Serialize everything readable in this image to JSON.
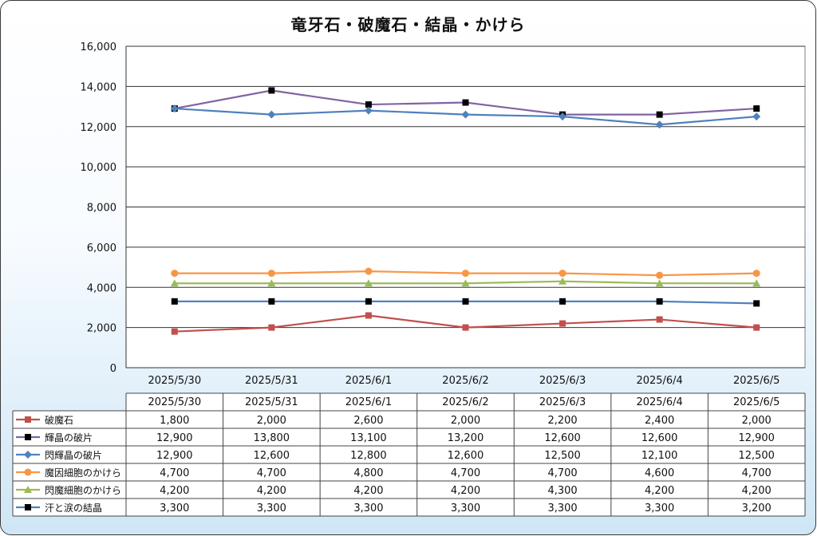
{
  "chart_data": {
    "type": "line",
    "title": "竜牙石・破魔石・結晶・かけら",
    "categories": [
      "2025/5/30",
      "2025/5/31",
      "2025/6/1",
      "2025/6/2",
      "2025/6/3",
      "2025/6/4",
      "2025/6/5"
    ],
    "ylim": [
      0,
      16000
    ],
    "yticks": [
      0,
      2000,
      4000,
      6000,
      8000,
      10000,
      12000,
      14000,
      16000
    ],
    "ytick_labels": [
      "0",
      "2,000",
      "4,000",
      "6,000",
      "8,000",
      "10,000",
      "12,000",
      "14,000",
      "16,000"
    ],
    "grid": true,
    "legend": "data-table-below",
    "series": [
      {
        "name": "破魔石",
        "color": "#c0504d",
        "marker": "square",
        "values": [
          1800,
          2000,
          2600,
          2000,
          2200,
          2400,
          2000
        ],
        "labels": [
          "1,800",
          "2,000",
          "2,600",
          "2,000",
          "2,200",
          "2,400",
          "2,000"
        ]
      },
      {
        "name": "輝晶の破片",
        "color": "#8064a2",
        "marker_color": "#000000",
        "marker": "square",
        "values": [
          12900,
          13800,
          13100,
          13200,
          12600,
          12600,
          12900
        ],
        "labels": [
          "12,900",
          "13,800",
          "13,100",
          "13,200",
          "12,600",
          "12,600",
          "12,900"
        ]
      },
      {
        "name": "閃輝晶の破片",
        "color": "#4f81bd",
        "marker": "diamond",
        "values": [
          12900,
          12600,
          12800,
          12600,
          12500,
          12100,
          12500
        ],
        "labels": [
          "12,900",
          "12,600",
          "12,800",
          "12,600",
          "12,500",
          "12,100",
          "12,500"
        ]
      },
      {
        "name": "魔因細胞のかけら",
        "color": "#f79646",
        "marker": "circle",
        "values": [
          4700,
          4700,
          4800,
          4700,
          4700,
          4600,
          4700
        ],
        "labels": [
          "4,700",
          "4,700",
          "4,800",
          "4,700",
          "4,700",
          "4,600",
          "4,700"
        ]
      },
      {
        "name": "閃魔細胞のかけら",
        "color": "#9bbb59",
        "marker": "triangle",
        "values": [
          4200,
          4200,
          4200,
          4200,
          4300,
          4200,
          4200
        ],
        "labels": [
          "4,200",
          "4,200",
          "4,200",
          "4,200",
          "4,300",
          "4,200",
          "4,200"
        ]
      },
      {
        "name": "汗と涙の結晶",
        "color": "#4f81bd",
        "marker_color": "#000000",
        "marker": "square",
        "values": [
          3300,
          3300,
          3300,
          3300,
          3300,
          3300,
          3200
        ],
        "labels": [
          "3,300",
          "3,300",
          "3,300",
          "3,300",
          "3,300",
          "3,300",
          "3,200"
        ]
      }
    ]
  }
}
